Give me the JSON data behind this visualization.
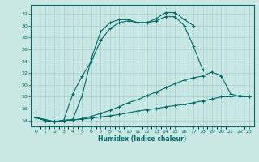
{
  "xlabel": "Humidex (Indice chaleur)",
  "ylabel": "",
  "xlim": [
    -0.5,
    23.5
  ],
  "ylim": [
    13.0,
    33.5
  ],
  "xticks": [
    0,
    1,
    2,
    3,
    4,
    5,
    6,
    7,
    8,
    9,
    10,
    11,
    12,
    13,
    14,
    15,
    16,
    17,
    18,
    19,
    20,
    21,
    22,
    23
  ],
  "yticks": [
    14,
    16,
    18,
    20,
    22,
    24,
    26,
    28,
    30,
    32
  ],
  "bg_color": "#c9e8e4",
  "line_color": "#006b6b",
  "grid_color": "#a8cece",
  "curves": [
    {
      "x": [
        0,
        1,
        2,
        3,
        4,
        5,
        6,
        7,
        8,
        9,
        10,
        11,
        12,
        13,
        14,
        15,
        16,
        17,
        18,
        19,
        20,
        21,
        22,
        23
      ],
      "y": [
        14.5,
        14.0,
        13.8,
        14.0,
        14.1,
        14.2,
        14.4,
        14.6,
        14.8,
        15.0,
        15.3,
        15.6,
        15.8,
        16.0,
        16.3,
        16.5,
        16.7,
        17.0,
        17.3,
        17.6,
        18.0,
        18.0,
        18.2,
        18.0
      ]
    },
    {
      "x": [
        0,
        1,
        2,
        3,
        4,
        5,
        6,
        7,
        8,
        9,
        10,
        11,
        12,
        13,
        14,
        15,
        16,
        17,
        18,
        19,
        20,
        21,
        22,
        23
      ],
      "y": [
        14.5,
        14.0,
        13.8,
        14.0,
        14.1,
        14.3,
        14.7,
        15.2,
        15.7,
        16.3,
        17.0,
        17.5,
        18.2,
        18.8,
        19.5,
        20.2,
        20.8,
        21.2,
        21.5,
        22.2,
        21.5,
        18.5,
        18.0,
        18.0
      ]
    },
    {
      "x": [
        0,
        2,
        3,
        4,
        5,
        6,
        7,
        8,
        9,
        10,
        11,
        12,
        13,
        14,
        15,
        16,
        17,
        18
      ],
      "y": [
        14.5,
        13.8,
        14.0,
        18.5,
        21.5,
        24.0,
        27.5,
        29.5,
        30.5,
        30.8,
        30.5,
        30.5,
        30.8,
        31.5,
        31.5,
        30.0,
        26.5,
        22.5
      ]
    },
    {
      "x": [
        0,
        2,
        3,
        4,
        5,
        6,
        7,
        8,
        9,
        10,
        11,
        12,
        13,
        14,
        15,
        16,
        17
      ],
      "y": [
        14.5,
        13.8,
        14.0,
        14.2,
        18.2,
        24.5,
        29.0,
        30.5,
        31.0,
        31.0,
        30.5,
        30.5,
        31.2,
        32.2,
        32.2,
        31.0,
        30.0
      ]
    }
  ]
}
